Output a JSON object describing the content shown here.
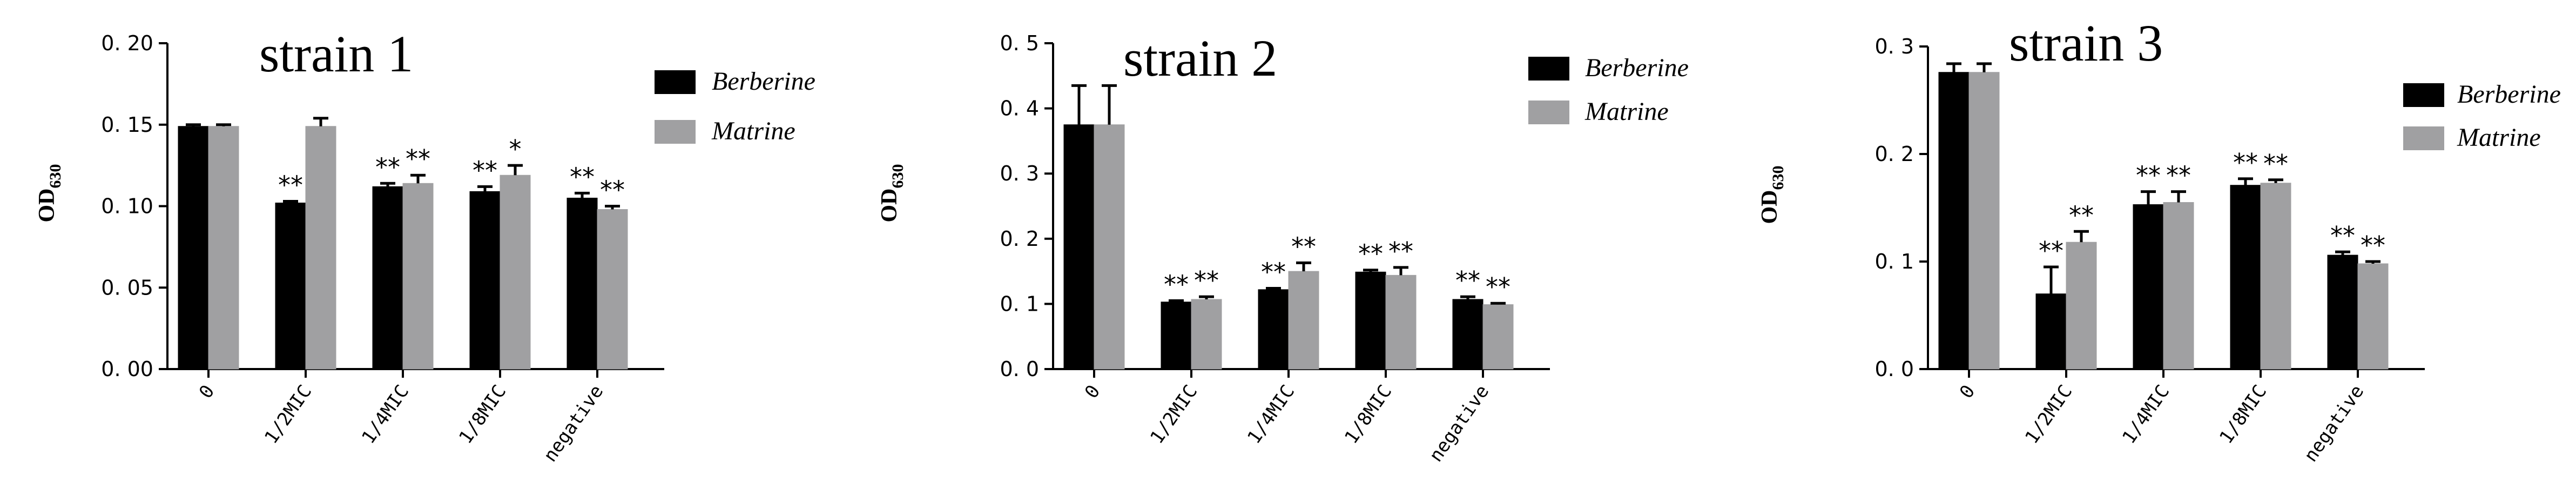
{
  "chart_data": [
    {
      "type": "bar",
      "title": "strain 1",
      "ylabel": "OD630",
      "ylabel_main": "OD",
      "ylabel_sub": "630",
      "categories": [
        "0",
        "1/2MIC",
        "1/4MIC",
        "1/8MIC",
        "negative"
      ],
      "ylim": [
        0,
        0.2
      ],
      "yticks": [
        0,
        0.05,
        0.1,
        0.15,
        0.2
      ],
      "ytick_labels": [
        "0. 00",
        "0. 05",
        "0. 10",
        "0. 15",
        "0. 20"
      ],
      "legend_position": "top-right",
      "series": [
        {
          "name": "Berberine",
          "color": "#000000",
          "values": [
            0.149,
            0.102,
            0.112,
            0.109,
            0.105
          ],
          "errors": [
            0.001,
            0.001,
            0.002,
            0.003,
            0.003
          ],
          "significance": [
            "",
            "**",
            "**",
            "**",
            "**"
          ]
        },
        {
          "name": "Matrine",
          "color": "#a0a0a2",
          "values": [
            0.149,
            0.149,
            0.114,
            0.119,
            0.098
          ],
          "errors": [
            0.001,
            0.005,
            0.005,
            0.006,
            0.002
          ],
          "significance": [
            "",
            "",
            "**",
            "*",
            "**"
          ]
        }
      ]
    },
    {
      "type": "bar",
      "title": "strain 2",
      "ylabel": "OD630",
      "ylabel_main": "OD",
      "ylabel_sub": "630",
      "categories": [
        "0",
        "1/2MIC",
        "1/4MIC",
        "1/8MIC",
        "negative"
      ],
      "ylim": [
        0,
        0.5
      ],
      "yticks": [
        0,
        0.1,
        0.2,
        0.3,
        0.4,
        0.5
      ],
      "ytick_labels": [
        "0. 0",
        "0. 1",
        "0. 2",
        "0. 3",
        "0. 4",
        "0. 5"
      ],
      "legend_position": "top-right",
      "series": [
        {
          "name": "Berberine",
          "color": "#000000",
          "values": [
            0.375,
            0.103,
            0.122,
            0.149,
            0.107
          ],
          "errors": [
            0.06,
            0.002,
            0.002,
            0.003,
            0.004
          ],
          "significance": [
            "",
            "**",
            "**",
            "**",
            "**"
          ]
        },
        {
          "name": "Matrine",
          "color": "#a0a0a2",
          "values": [
            0.375,
            0.107,
            0.15,
            0.144,
            0.099
          ],
          "errors": [
            0.06,
            0.004,
            0.013,
            0.012,
            0.002
          ],
          "significance": [
            "",
            "**",
            "**",
            "**",
            "**"
          ]
        }
      ]
    },
    {
      "type": "bar",
      "title": "strain 3",
      "ylabel": "OD630",
      "ylabel_main": "OD",
      "ylabel_sub": "630",
      "categories": [
        "0",
        "1/2MIC",
        "1/4MIC",
        "1/8MIC",
        "negative"
      ],
      "ylim": [
        0,
        0.3
      ],
      "yticks": [
        0,
        0.1,
        0.2,
        0.3
      ],
      "ytick_labels": [
        "0. 0",
        "0. 1",
        "0. 2",
        "0. 3"
      ],
      "legend_position": "top-right",
      "series": [
        {
          "name": "Berberine",
          "color": "#000000",
          "values": [
            0.276,
            0.07,
            0.153,
            0.171,
            0.106
          ],
          "errors": [
            0.008,
            0.025,
            0.012,
            0.006,
            0.003
          ],
          "significance": [
            "",
            "**",
            "**",
            "**",
            "**"
          ]
        },
        {
          "name": "Matrine",
          "color": "#a0a0a2",
          "values": [
            0.276,
            0.118,
            0.155,
            0.173,
            0.098
          ],
          "errors": [
            0.008,
            0.01,
            0.01,
            0.003,
            0.002
          ],
          "significance": [
            "",
            "**",
            "**",
            "**",
            "**"
          ]
        }
      ]
    }
  ]
}
